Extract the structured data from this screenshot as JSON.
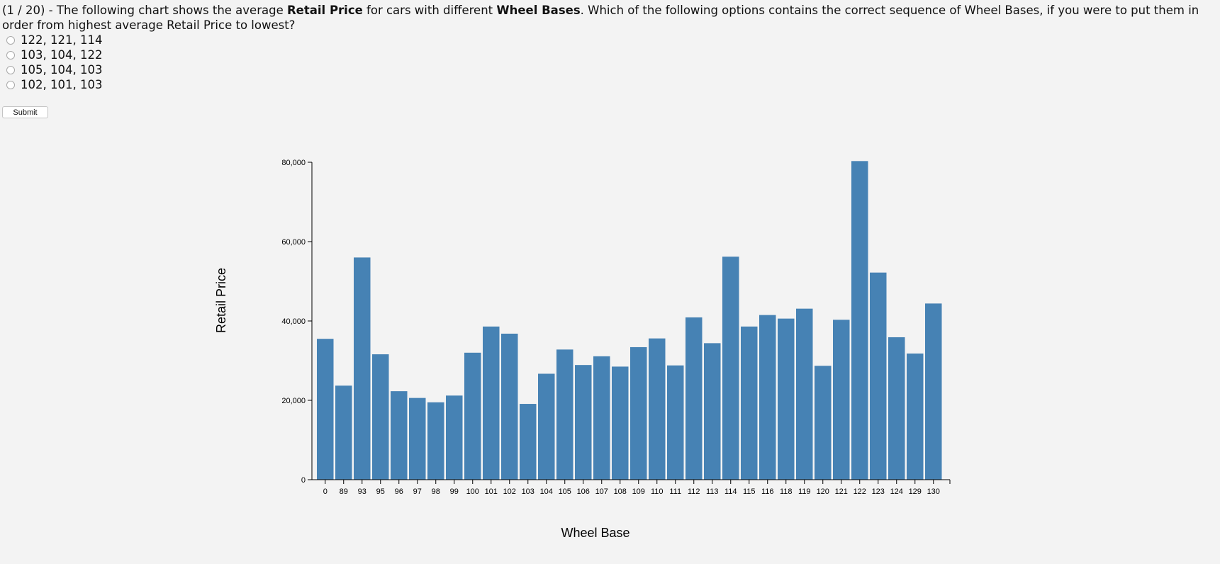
{
  "question": {
    "number": "(1 / 20) - ",
    "text_a": "The following chart shows the average ",
    "bold_a": "Retail Price",
    "text_b": " for cars with different ",
    "bold_b": "Wheel Bases",
    "text_c": ". Which of the following options contains the correct sequence of Wheel Bases, if you were to put them in order from highest average Retail Price to lowest?"
  },
  "options": [
    "122, 121, 114",
    "103, 104, 122",
    "105, 104, 103",
    "102, 101, 103"
  ],
  "submit_label": "Submit",
  "colors": {
    "bar": "#4682b4",
    "background": "#f3f3f3"
  },
  "chart_data": {
    "type": "bar",
    "categories": [
      "0",
      "89",
      "93",
      "95",
      "96",
      "97",
      "98",
      "99",
      "100",
      "101",
      "102",
      "103",
      "104",
      "105",
      "106",
      "107",
      "108",
      "109",
      "110",
      "111",
      "112",
      "113",
      "114",
      "115",
      "116",
      "118",
      "119",
      "120",
      "121",
      "122",
      "123",
      "124",
      "129",
      "130"
    ],
    "values": [
      35500,
      23700,
      56000,
      31600,
      22300,
      20600,
      19500,
      21200,
      32000,
      38600,
      36800,
      19100,
      26700,
      32800,
      28900,
      31100,
      28500,
      33400,
      35600,
      28800,
      40900,
      34400,
      56200,
      38600,
      41500,
      40600,
      43100,
      28700,
      40300,
      80300,
      52200,
      35900,
      31800,
      44400
    ],
    "xlabel": "Wheel Base",
    "ylabel": "Retail Price",
    "ylim": [
      0,
      80000
    ],
    "yticks": [
      0,
      20000,
      40000,
      60000,
      80000
    ],
    "ytick_labels": [
      "0",
      "20,000",
      "40,000",
      "60,000",
      "80,000"
    ],
    "grid": false
  }
}
